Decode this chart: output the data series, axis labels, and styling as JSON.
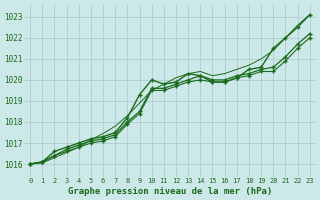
{
  "title": "Graphe pression niveau de la mer (hPa)",
  "bg_color": "#cce8e8",
  "grid_color": "#a8c8c8",
  "line_color": "#1a6b1a",
  "x_ticks": [
    0,
    1,
    2,
    3,
    4,
    5,
    6,
    7,
    8,
    9,
    10,
    11,
    12,
    13,
    14,
    15,
    16,
    17,
    18,
    19,
    20,
    21,
    22,
    23
  ],
  "ylim": [
    1015.4,
    1023.6
  ],
  "yticks": [
    1016,
    1017,
    1018,
    1019,
    1020,
    1021,
    1022,
    1023
  ],
  "series": [
    {
      "values": [
        1016.0,
        1016.1,
        1016.6,
        1016.8,
        1017.0,
        1017.2,
        1017.3,
        1017.5,
        1018.2,
        1019.3,
        1020.0,
        1019.8,
        1019.9,
        1020.3,
        1020.2,
        1019.9,
        1019.9,
        1020.1,
        1020.5,
        1020.6,
        1021.5,
        1022.0,
        1022.5,
        1023.1
      ],
      "marker": "+",
      "lw": 1.0
    },
    {
      "values": [
        1016.0,
        1016.1,
        1016.4,
        1016.7,
        1016.9,
        1017.1,
        1017.2,
        1017.4,
        1018.0,
        1018.5,
        1019.6,
        1019.6,
        1019.8,
        1020.0,
        1020.2,
        1020.0,
        1020.0,
        1020.2,
        1020.3,
        1020.5,
        1020.6,
        1021.1,
        1021.7,
        1022.2
      ],
      "marker": "+",
      "lw": 0.9
    },
    {
      "values": [
        1016.0,
        1016.1,
        1016.4,
        1016.6,
        1016.8,
        1017.0,
        1017.1,
        1017.3,
        1017.9,
        1018.4,
        1019.5,
        1019.5,
        1019.7,
        1019.9,
        1020.0,
        1019.9,
        1019.9,
        1020.1,
        1020.2,
        1020.4,
        1020.4,
        1020.9,
        1021.5,
        1022.0
      ],
      "marker": "+",
      "lw": 0.8
    },
    {
      "values": [
        1016.0,
        1016.05,
        1016.3,
        1016.55,
        1016.8,
        1017.15,
        1017.45,
        1017.8,
        1018.3,
        1018.9,
        1019.5,
        1019.8,
        1020.1,
        1020.3,
        1020.4,
        1020.2,
        1020.3,
        1020.5,
        1020.7,
        1021.0,
        1021.4,
        1022.0,
        1022.6,
        1023.1
      ],
      "marker": null,
      "lw": 0.7
    }
  ]
}
